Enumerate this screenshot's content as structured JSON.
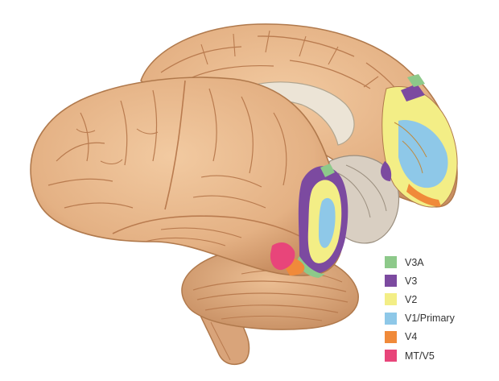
{
  "legend": {
    "items": [
      {
        "label": "V3A",
        "color": "#8dc98a"
      },
      {
        "label": "V3",
        "color": "#7c4aa0"
      },
      {
        "label": "V2",
        "color": "#f3ee86"
      },
      {
        "label": "V1/Primary",
        "color": "#8ec8e8"
      },
      {
        "label": "V4",
        "color": "#f08a3a"
      },
      {
        "label": "MT/V5",
        "color": "#e8457a"
      }
    ]
  },
  "colors": {
    "cortex": "#e8b88c",
    "cortex_outline": "#b0794c",
    "sulcus": "#b97b4f",
    "corpus_callosum": "#ece4d6",
    "cerebellum": "#e0ab80",
    "brainstem": "#d9a47a"
  }
}
